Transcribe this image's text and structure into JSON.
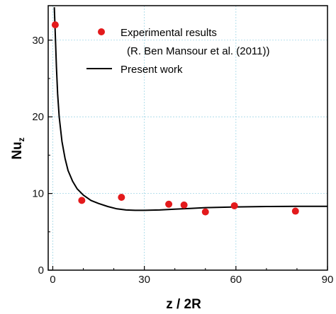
{
  "chart_data": {
    "type": "scatter",
    "xlabel": "z / 2R",
    "ylabel": {
      "main": "Nu",
      "sub": "z"
    },
    "xlim": [
      -1.5,
      90
    ],
    "ylim": [
      0,
      34.5
    ],
    "xticks": [
      "0",
      "30",
      "60",
      "90"
    ],
    "yticks": [
      "0",
      "10",
      "20",
      "30"
    ],
    "grid": true,
    "legend_position": "top-right",
    "series": [
      {
        "name": "Experimental results",
        "name_line2": "(R. Ben Mansour et al. (2011))",
        "kind": "scatter",
        "color": "#e31a1c",
        "points": [
          {
            "x": 0.8,
            "y": 32.0
          },
          {
            "x": 9.5,
            "y": 9.1
          },
          {
            "x": 22.5,
            "y": 9.5
          },
          {
            "x": 38.0,
            "y": 8.6
          },
          {
            "x": 43.0,
            "y": 8.5
          },
          {
            "x": 50.0,
            "y": 7.6
          },
          {
            "x": 59.5,
            "y": 8.4
          },
          {
            "x": 79.5,
            "y": 7.7
          }
        ]
      },
      {
        "name": "Present work",
        "kind": "line",
        "color": "#000000",
        "points": [
          {
            "x": 0.5,
            "y": 34.3
          },
          {
            "x": 0.8,
            "y": 31.0
          },
          {
            "x": 1.2,
            "y": 26.5
          },
          {
            "x": 1.6,
            "y": 23.0
          },
          {
            "x": 2.1,
            "y": 20.0
          },
          {
            "x": 3.0,
            "y": 16.8
          },
          {
            "x": 4.0,
            "y": 14.6
          },
          {
            "x": 5.0,
            "y": 13.0
          },
          {
            "x": 6.5,
            "y": 11.6
          },
          {
            "x": 8.0,
            "y": 10.6
          },
          {
            "x": 10.0,
            "y": 9.8
          },
          {
            "x": 12.5,
            "y": 9.1
          },
          {
            "x": 15.0,
            "y": 8.7
          },
          {
            "x": 18.0,
            "y": 8.3
          },
          {
            "x": 21.0,
            "y": 8.0
          },
          {
            "x": 24.0,
            "y": 7.85
          },
          {
            "x": 27.0,
            "y": 7.8
          },
          {
            "x": 30.0,
            "y": 7.8
          },
          {
            "x": 35.0,
            "y": 7.85
          },
          {
            "x": 40.0,
            "y": 7.95
          },
          {
            "x": 45.0,
            "y": 8.05
          },
          {
            "x": 50.0,
            "y": 8.15
          },
          {
            "x": 55.0,
            "y": 8.2
          },
          {
            "x": 60.0,
            "y": 8.25
          },
          {
            "x": 70.0,
            "y": 8.3
          },
          {
            "x": 80.0,
            "y": 8.32
          },
          {
            "x": 90.0,
            "y": 8.33
          }
        ]
      }
    ]
  }
}
